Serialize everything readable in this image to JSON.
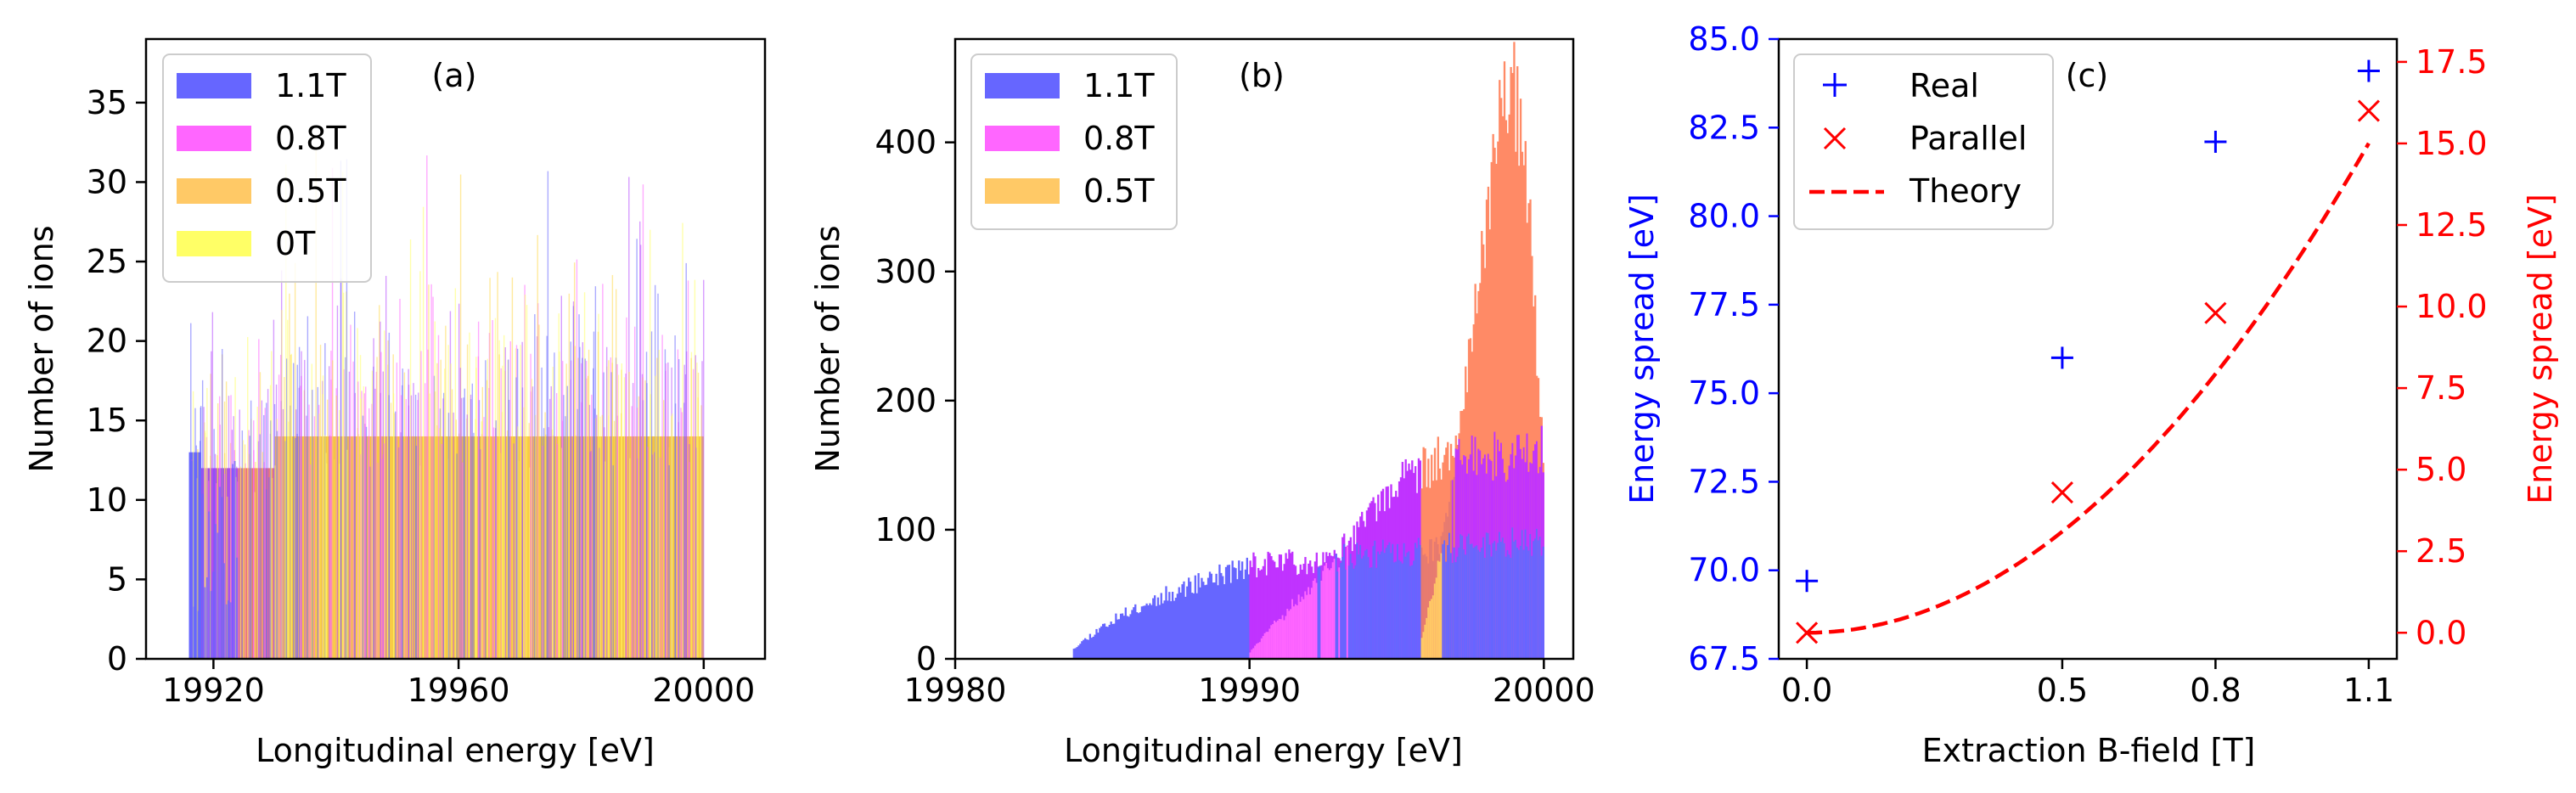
{
  "figure": {
    "colors": {
      "1.1T": "#6666ff",
      "0.8T": "#ff66ff",
      "0.5T": "#ffc966",
      "0T": "#ffff66",
      "overlap_ab": "#c033ff",
      "overlap_bc": "#ff8a66",
      "overlap_lowB": "#e67a70",
      "overlap_cd": "#f5c542",
      "real": "#0000ff",
      "parallel": "#ff0000"
    }
  },
  "chart_data": [
    {
      "type": "bar",
      "kind": "histogram",
      "panel_label": "(a)",
      "xlabel": "Longitudinal energy [eV]",
      "ylabel": "Number of ions",
      "xlim": [
        19909,
        20010
      ],
      "ylim": [
        0,
        39
      ],
      "xticks": [
        "19920",
        "19960",
        "20000"
      ],
      "yticks": [
        "0",
        "5",
        "10",
        "15",
        "20",
        "25",
        "30",
        "35"
      ],
      "legend": {
        "loc": "top-left",
        "entries": [
          "1.1T",
          "0.8T",
          "0.5T",
          "0T"
        ]
      },
      "series": [
        {
          "name": "1.1T",
          "start": 19916,
          "end": 20000,
          "typical_count": 13
        },
        {
          "name": "0.8T",
          "start": 19918,
          "end": 20000,
          "typical_count": 12
        },
        {
          "name": "0.5T",
          "start": 19924,
          "end": 20000,
          "typical_count": 12
        },
        {
          "name": "0T",
          "start": 19930,
          "end": 20000,
          "typical_count": 14
        }
      ]
    },
    {
      "type": "bar",
      "kind": "histogram",
      "panel_label": "(b)",
      "xlabel": "Longitudinal energy [eV]",
      "ylabel": "Number of ions",
      "xlim": [
        19980,
        20001
      ],
      "ylim": [
        0,
        480
      ],
      "xticks": [
        "19980",
        "19990",
        "20000"
      ],
      "yticks": [
        "0",
        "100",
        "200",
        "300",
        "400"
      ],
      "legend": {
        "loc": "top-left",
        "entries": [
          "1.1T",
          "0.8T",
          "0.5T"
        ]
      },
      "series": [
        {
          "name": "1.1T",
          "x": [
            19984,
            19985,
            19986,
            19987,
            19988,
            19989,
            19990,
            19991,
            19992,
            19993,
            19994,
            19995,
            19996,
            19997,
            19998,
            19999,
            20000
          ],
          "values": [
            8,
            25,
            38,
            48,
            57,
            65,
            72,
            75,
            76,
            78,
            80,
            82,
            84,
            86,
            88,
            90,
            92
          ]
        },
        {
          "name": "0.8T",
          "x": [
            19990,
            19991,
            19992,
            19993,
            19994,
            19995,
            19996,
            19997,
            19998,
            19999,
            20000
          ],
          "values": [
            5,
            30,
            55,
            80,
            105,
            130,
            150,
            155,
            158,
            160,
            160
          ]
        },
        {
          "name": "0.5T",
          "x": [
            19995.8,
            19996.5,
            19997.0,
            19997.5,
            19998.0,
            19998.5,
            19999.0,
            19999.5,
            20000.0
          ],
          "values": [
            10,
            80,
            160,
            240,
            330,
            420,
            440,
            340,
            150
          ]
        }
      ]
    },
    {
      "type": "scatter",
      "panel_label": "(c)",
      "xlabel": "Extraction B-field [T]",
      "ylabel_left": "Energy spread [eV]",
      "ylabel_right": "Energy spread [eV]",
      "xticks": [
        "0.0",
        "0.5",
        "0.8",
        "1.1"
      ],
      "ylim_left": [
        67.5,
        85.0
      ],
      "ylim_right": [
        -0.8,
        18.2
      ],
      "yticks_left": [
        "67.5",
        "70.0",
        "72.5",
        "75.0",
        "77.5",
        "80.0",
        "82.5",
        "85.0"
      ],
      "yticks_right": [
        "0.0",
        "2.5",
        "5.0",
        "7.5",
        "10.0",
        "12.5",
        "15.0",
        "17.5"
      ],
      "legend": {
        "loc": "top-left",
        "entries": [
          "Real",
          "Parallel",
          "Theory"
        ]
      },
      "series": [
        {
          "name": "Real",
          "axis": "left",
          "marker": "+",
          "x": [
            0.0,
            0.5,
            0.8,
            1.1
          ],
          "values": [
            69.7,
            76.0,
            82.1,
            84.1
          ]
        },
        {
          "name": "Parallel",
          "axis": "right",
          "marker": "x",
          "x": [
            0.0,
            0.5,
            0.8,
            1.1
          ],
          "values": [
            0.0,
            4.3,
            9.8,
            16.0
          ]
        },
        {
          "name": "Theory",
          "axis": "right",
          "style": "dashed",
          "formula": "12.4 * B^2",
          "x_range": [
            0.0,
            1.1
          ]
        }
      ]
    }
  ]
}
